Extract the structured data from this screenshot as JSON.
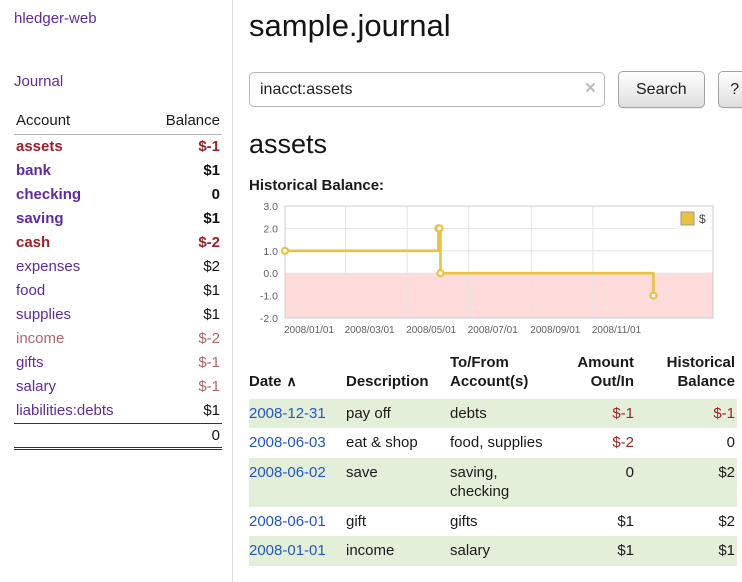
{
  "colors": {
    "purple": "#5f2a9e",
    "link_blue": "#2356c7",
    "negative": "#9e2028",
    "negative_light": "#b4646b",
    "row_green": "#e3efd8"
  },
  "sidebar": {
    "app_title": "hledger-web",
    "nav": {
      "journal": "Journal"
    },
    "accounts": {
      "account_header": "Account",
      "balance_header": "Balance",
      "rows": [
        {
          "name": "assets",
          "balance": "$-1",
          "indent": 1,
          "bold": true,
          "name_style": "negative",
          "balance_style": "negative"
        },
        {
          "name": "bank",
          "balance": "$1",
          "indent": 2,
          "bold": true,
          "name_style": "purple",
          "balance_style": "plain"
        },
        {
          "name": "checking",
          "balance": "0",
          "indent": 3,
          "bold": true,
          "name_style": "purple",
          "balance_style": "plain"
        },
        {
          "name": "saving",
          "balance": "$1",
          "indent": 3,
          "bold": true,
          "name_style": "purple",
          "balance_style": "plain"
        },
        {
          "name": "cash",
          "balance": "$-2",
          "indent": 2,
          "bold": true,
          "name_style": "negative",
          "balance_style": "negative"
        },
        {
          "name": "expenses",
          "balance": "$2",
          "indent": 1,
          "bold": false,
          "name_style": "purple",
          "balance_style": "plain"
        },
        {
          "name": "food",
          "balance": "$1",
          "indent": 2,
          "bold": false,
          "name_style": "purple",
          "balance_style": "plain"
        },
        {
          "name": "supplies",
          "balance": "$1",
          "indent": 2,
          "bold": false,
          "name_style": "purple",
          "balance_style": "plain"
        },
        {
          "name": "income",
          "balance": "$-2",
          "indent": 1,
          "bold": false,
          "name_style": "negative-light",
          "balance_style": "negative-light"
        },
        {
          "name": "gifts",
          "balance": "$-1",
          "indent": 2,
          "bold": false,
          "name_style": "purple",
          "balance_style": "negative-light"
        },
        {
          "name": "salary",
          "balance": "$-1",
          "indent": 2,
          "bold": false,
          "name_style": "purple",
          "balance_style": "negative-light"
        },
        {
          "name": "liabilities:debts",
          "balance": "$1",
          "indent": 1,
          "bold": false,
          "name_style": "purple",
          "balance_style": "plain"
        }
      ],
      "total": "0"
    }
  },
  "main": {
    "title": "sample.journal",
    "search": {
      "value": "inacct:assets",
      "clear_icon": "×",
      "button_label": "Search",
      "help_label": "?"
    },
    "account_heading": "assets",
    "chart_label": "Historical Balance:"
  },
  "register": {
    "headers": {
      "date": "Date",
      "sort_icon": "∧",
      "description": "Description",
      "accounts_line1": "To/From",
      "accounts_line2": "Account(s)",
      "amount_line1": "Amount",
      "amount_line2": "Out/In",
      "balance_line1": "Historical",
      "balance_line2": "Balance"
    },
    "rows": [
      {
        "date": "2008-12-31",
        "description": "pay off",
        "accounts": "debts",
        "amount": "$-1",
        "amount_negative": true,
        "balance": "$-1",
        "balance_negative": true
      },
      {
        "date": "2008-06-03",
        "description": "eat & shop",
        "accounts": "food, supplies",
        "amount": "$-2",
        "amount_negative": true,
        "balance": "0",
        "balance_negative": false
      },
      {
        "date": "2008-06-02",
        "description": "save",
        "accounts": "saving, checking",
        "amount": "0",
        "amount_negative": false,
        "balance": "$2",
        "balance_negative": false
      },
      {
        "date": "2008-06-01",
        "description": "gift",
        "accounts": "gifts",
        "amount": "$1",
        "amount_negative": false,
        "balance": "$2",
        "balance_negative": false
      },
      {
        "date": "2008-01-01",
        "description": "income",
        "accounts": "salary",
        "amount": "$1",
        "amount_negative": false,
        "balance": "$1",
        "balance_negative": false
      }
    ]
  },
  "chart_data": {
    "type": "line",
    "title": "Historical Balance",
    "steps": true,
    "series": [
      {
        "name": "$",
        "points": [
          {
            "date": "2008-01-01",
            "value": 1
          },
          {
            "date": "2008-06-01",
            "value": 2
          },
          {
            "date": "2008-06-02",
            "value": 2
          },
          {
            "date": "2008-06-03",
            "value": 0
          },
          {
            "date": "2008-12-31",
            "value": -1
          }
        ]
      }
    ],
    "x_ticks": [
      {
        "date": "2008-01-01",
        "label": "2008/01/01"
      },
      {
        "date": "2008-03-01",
        "label": "2008/03/01"
      },
      {
        "date": "2008-05-01",
        "label": "2008/05/01"
      },
      {
        "date": "2008-07-01",
        "label": "2008/07/01"
      },
      {
        "date": "2008-09-01",
        "label": "2008/09/01"
      },
      {
        "date": "2008-11-01",
        "label": "2008/11/01"
      }
    ],
    "y_ticks": [
      {
        "value": 3,
        "label": "3.0"
      },
      {
        "value": 2,
        "label": "2.0"
      },
      {
        "value": 1,
        "label": "1.0"
      },
      {
        "value": 0,
        "label": "0.0"
      },
      {
        "value": -1,
        "label": "-1.0"
      },
      {
        "value": -2,
        "label": "-2.0"
      }
    ],
    "ylim": [
      -2,
      3
    ],
    "x_range_days": [
      0,
      424
    ],
    "legend": {
      "label": "$",
      "position": "top-right"
    },
    "colors": {
      "line": "#e8c240",
      "marker_fill": "#ffffff",
      "negative_region": "#ffdcdc",
      "grid": "#e4e4e4",
      "border": "#cccccc",
      "tick_text": "#606060",
      "legend_bg": "#ffffff"
    }
  }
}
